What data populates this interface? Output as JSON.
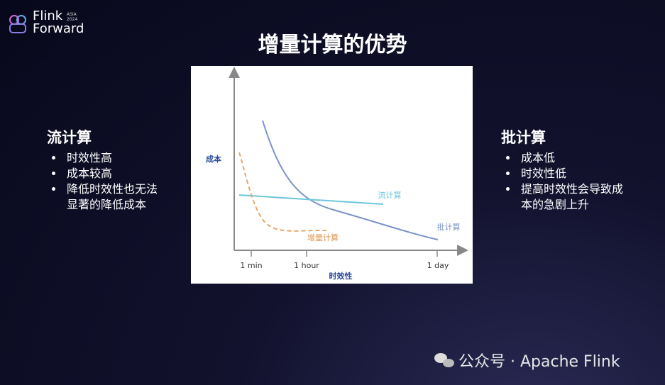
{
  "logo": {
    "name1": "Flink",
    "name2": "Forward",
    "badge_region": "ASIA",
    "badge_year": "2024"
  },
  "title": "增量计算的优势",
  "left": {
    "heading": "流计算",
    "bullets": [
      "时效性高",
      "成本较高",
      "降低时效性也无法显著的降低成本"
    ]
  },
  "right": {
    "heading": "批计算",
    "bullets": [
      "成本低",
      "时效性低",
      "提高时效性会导致成本的急剧上升"
    ]
  },
  "figure": {
    "y_label": "成本",
    "x_label": "时效性",
    "x_ticks": [
      "1 min",
      "1 hour",
      "1 day"
    ],
    "curves": [
      "流计算",
      "批计算",
      "增量计算"
    ]
  },
  "watermark": "公众号 · Apache Flink"
}
